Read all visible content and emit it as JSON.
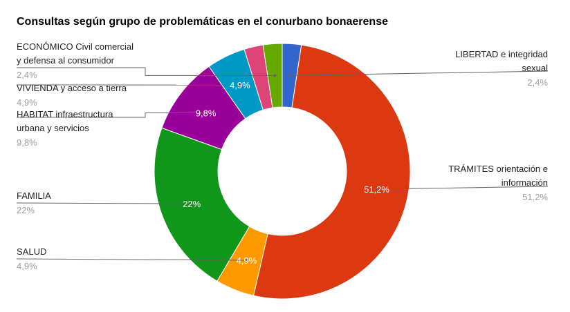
{
  "chart_data": {
    "type": "pie",
    "donut": true,
    "title": "Consultas según grupo de problemáticas en el conurbano bonaerense",
    "slices": [
      {
        "label_lines": [
          "LIBERTAD e integridad",
          "sexual"
        ],
        "value_label": "2,4%",
        "value": 2.4,
        "color": "#3366cc",
        "inner_label": ""
      },
      {
        "label_lines": [
          "TRÁMITES orientación e",
          "información"
        ],
        "value_label": "51,2%",
        "value": 51.2,
        "color": "#dc3912",
        "inner_label": "51,2%"
      },
      {
        "label_lines": [
          "SALUD"
        ],
        "value_label": "4,9%",
        "value": 4.9,
        "color": "#ff9900",
        "inner_label": "4,9%"
      },
      {
        "label_lines": [
          "FAMILIA"
        ],
        "value_label": "22%",
        "value": 22,
        "color": "#109618",
        "inner_label": "22%"
      },
      {
        "label_lines": [
          "HABITAT infraestructura",
          "urbana y servicios"
        ],
        "value_label": "9,8%",
        "value": 9.8,
        "color": "#990099",
        "inner_label": "9,8%"
      },
      {
        "label_lines": [
          "VIVIENDA y acceso a tierra"
        ],
        "value_label": "4,9%",
        "value": 4.9,
        "color": "#0099c6",
        "inner_label": "4,9%"
      },
      {
        "label_lines": [],
        "value_label": "",
        "value": 2.4,
        "color": "#dd4477",
        "inner_label": ""
      },
      {
        "label_lines": [
          "ECONÓMICO Civil comercial",
          "y defensa al consumidor"
        ],
        "value_label": "2,4%",
        "value": 2.4,
        "color": "#66aa00",
        "inner_label": ""
      }
    ]
  }
}
